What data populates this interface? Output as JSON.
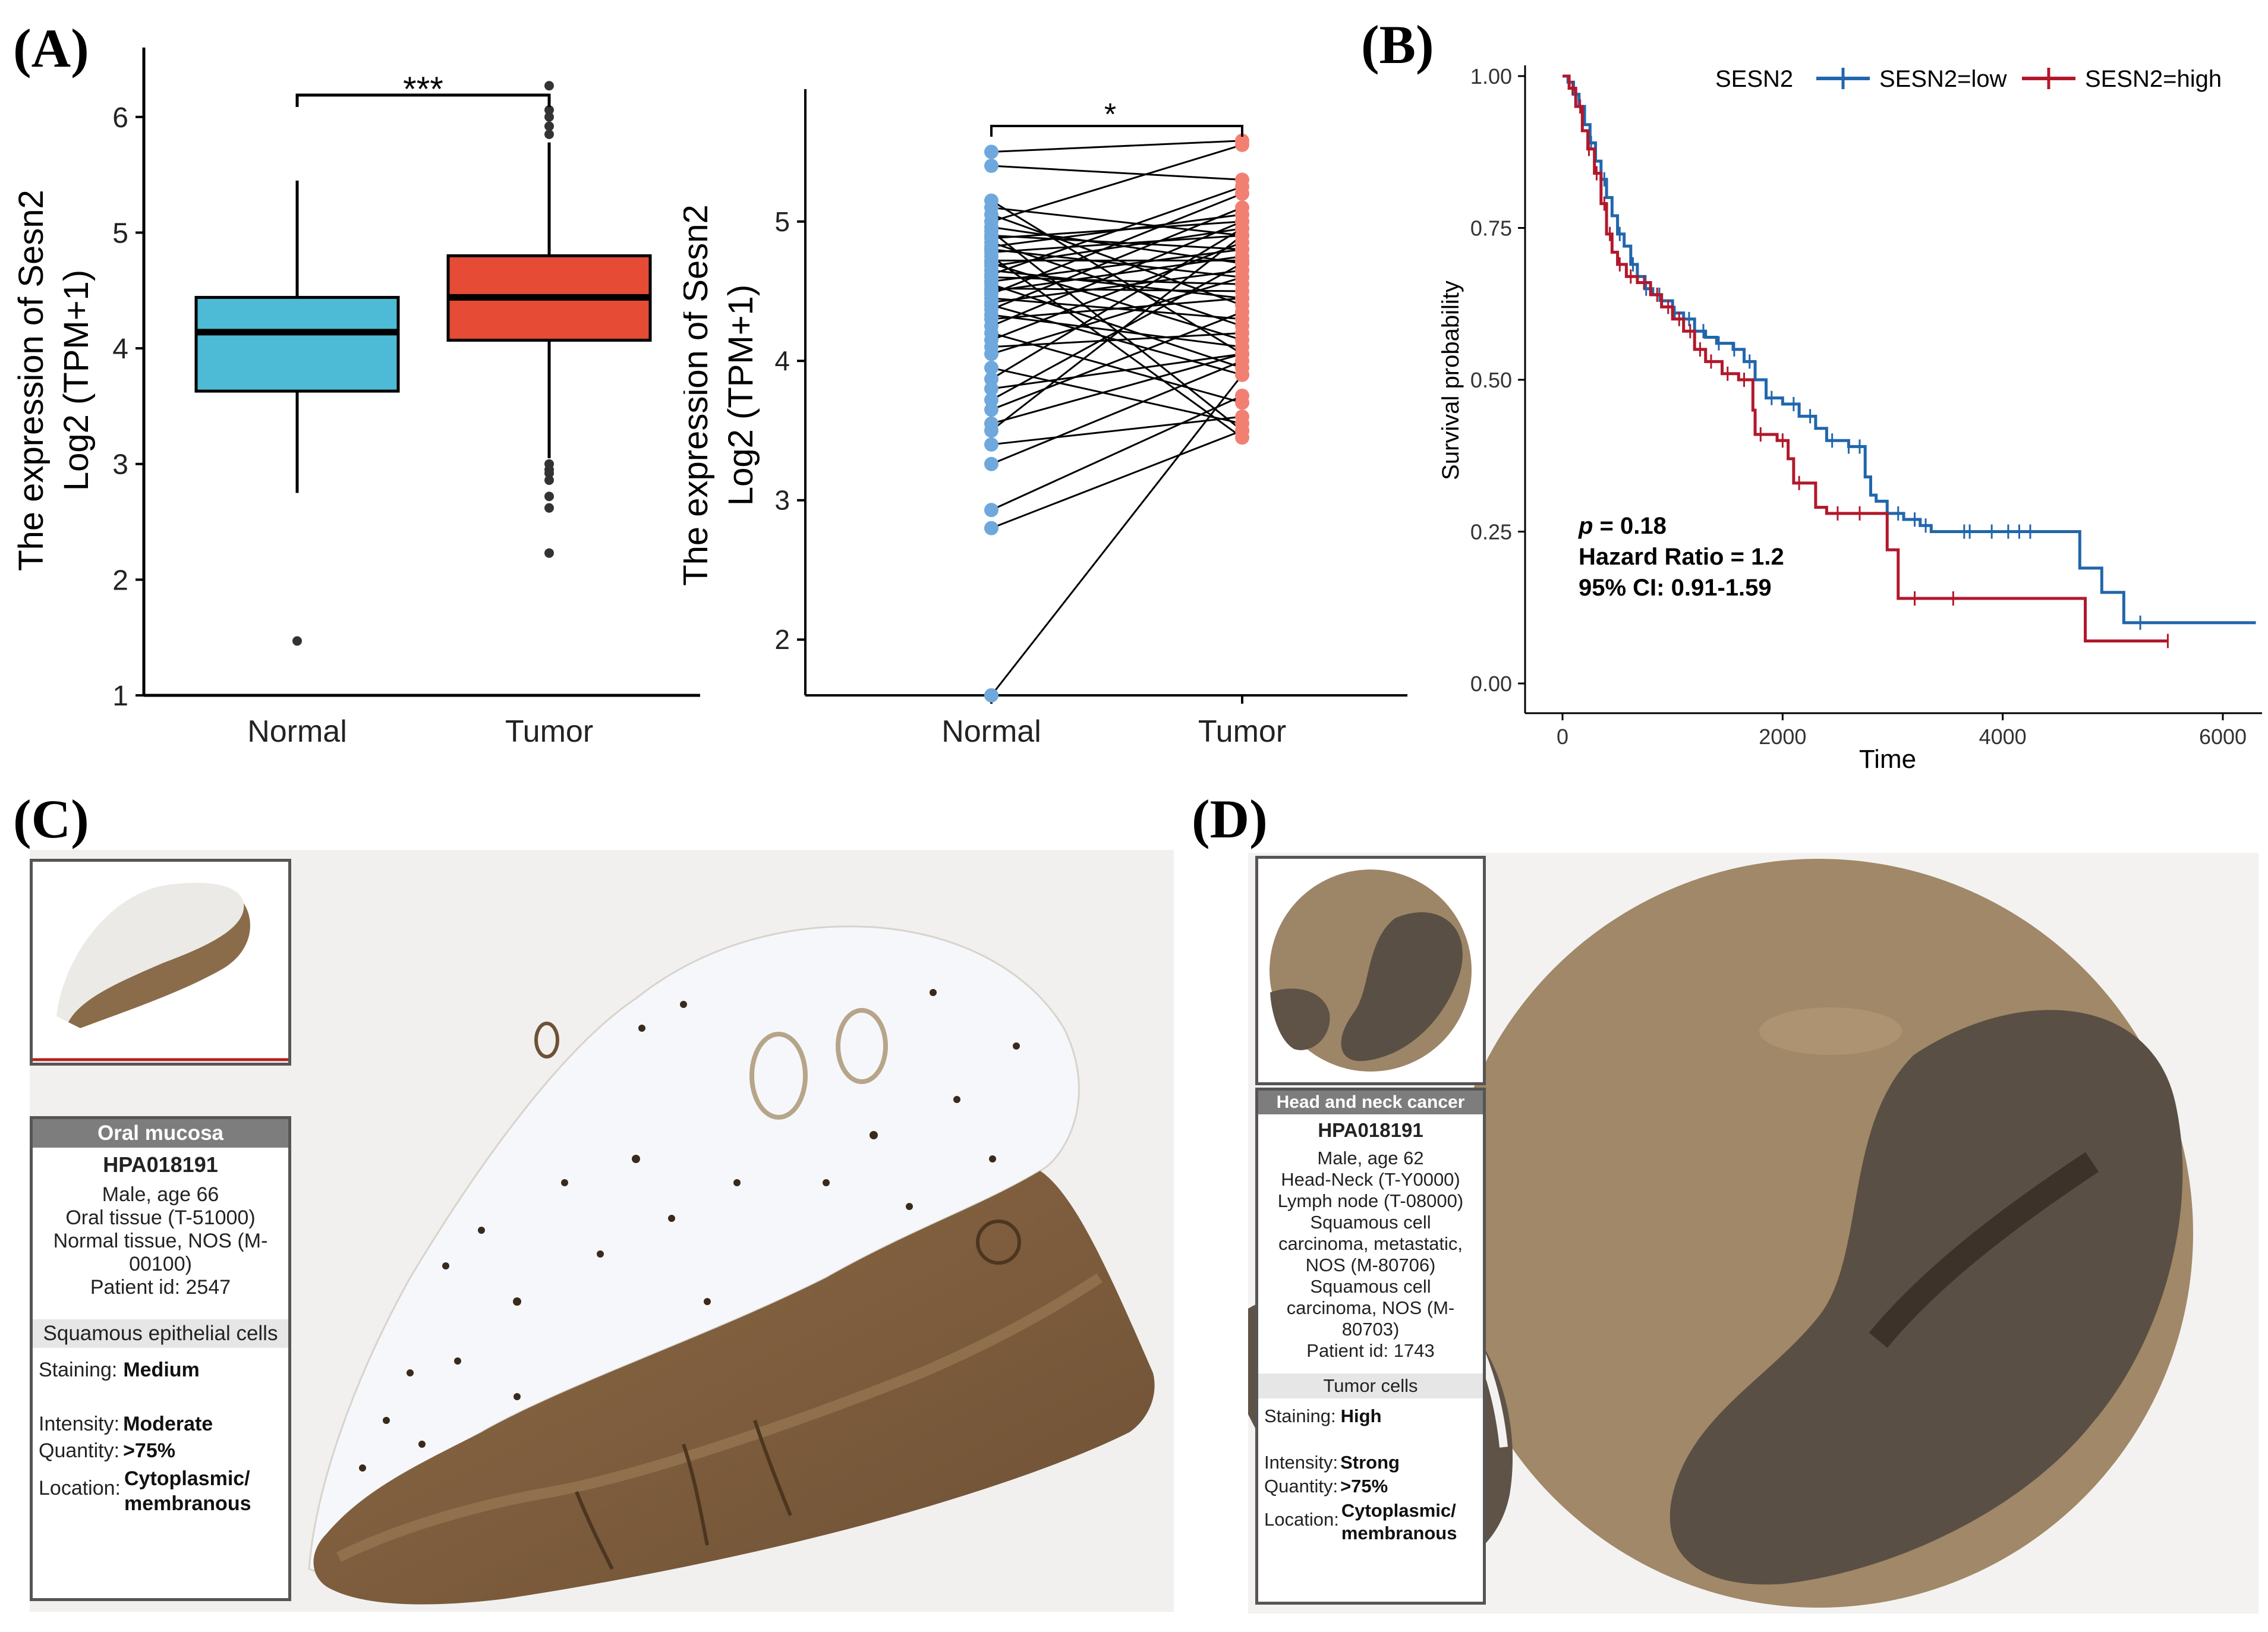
{
  "panels": {
    "a": "(A)",
    "b": "(B)",
    "c": "(C)",
    "d": "(D)"
  },
  "colors": {
    "normal": "#4dbbd5",
    "tumor": "#e64b35",
    "normal_points": "#6fa8dc",
    "tumor_points": "#f28072",
    "km_low": "#2166ac",
    "km_high": "#b2182b"
  },
  "chart_data": [
    {
      "id": "boxplot",
      "type": "box",
      "categories": [
        "Normal",
        "Tumor"
      ],
      "ylabel_line1": "The expression of Sesn2",
      "ylabel_line2": "Log2 (TPM+1)",
      "ylim": [
        1,
        6.6
      ],
      "yticks": [
        1,
        2,
        3,
        4,
        5,
        6
      ],
      "significance": "***",
      "boxes": [
        {
          "name": "Normal",
          "whisker_low": 2.75,
          "q1": 3.63,
          "median": 4.14,
          "q3": 4.44,
          "whisker_high": 5.45,
          "outliers": [
            1.47
          ]
        },
        {
          "name": "Tumor",
          "whisker_low": 3.05,
          "q1": 4.07,
          "median": 4.44,
          "q3": 4.8,
          "whisker_high": 5.78,
          "outliers": [
            2.23,
            2.62,
            2.72,
            2.86,
            2.92,
            2.95,
            3.0,
            5.85,
            5.92,
            6.0,
            6.06,
            6.27
          ]
        }
      ]
    },
    {
      "id": "paired",
      "type": "paired-line",
      "categories": [
        "Normal",
        "Tumor"
      ],
      "ylabel_line1": "The expression of Sesn2",
      "ylabel_line2": "Log2 (TPM+1)",
      "ylim": [
        1.6,
        5.95
      ],
      "yticks": [
        2,
        3,
        4,
        5
      ],
      "significance": "*",
      "pairs": [
        [
          1.6,
          3.9
        ],
        [
          2.8,
          3.5
        ],
        [
          2.93,
          3.75
        ],
        [
          3.26,
          4.0
        ],
        [
          3.4,
          3.6
        ],
        [
          3.5,
          4.9
        ],
        [
          3.55,
          4.05
        ],
        [
          3.65,
          4.35
        ],
        [
          3.72,
          4.7
        ],
        [
          3.8,
          4.05
        ],
        [
          3.87,
          4.95
        ],
        [
          3.95,
          3.55
        ],
        [
          4.05,
          4.6
        ],
        [
          4.1,
          4.2
        ],
        [
          4.15,
          4.85
        ],
        [
          4.2,
          3.7
        ],
        [
          4.25,
          5.0
        ],
        [
          4.3,
          4.45
        ],
        [
          4.33,
          4.1
        ],
        [
          4.37,
          5.1
        ],
        [
          4.4,
          3.9
        ],
        [
          4.42,
          4.65
        ],
        [
          4.45,
          4.3
        ],
        [
          4.48,
          5.2
        ],
        [
          4.5,
          4.75
        ],
        [
          4.52,
          4.5
        ],
        [
          4.55,
          3.95
        ],
        [
          4.57,
          4.8
        ],
        [
          4.6,
          4.55
        ],
        [
          4.62,
          5.25
        ],
        [
          4.65,
          4.45
        ],
        [
          4.68,
          4.95
        ],
        [
          4.7,
          4.15
        ],
        [
          4.72,
          4.72
        ],
        [
          4.75,
          3.45
        ],
        [
          4.78,
          4.9
        ],
        [
          4.8,
          4.6
        ],
        [
          4.82,
          5.05
        ],
        [
          4.85,
          4.25
        ],
        [
          4.88,
          5.0
        ],
        [
          4.9,
          4.8
        ],
        [
          4.93,
          3.5
        ],
        [
          4.96,
          4.7
        ],
        [
          5.0,
          5.55
        ],
        [
          5.05,
          4.4
        ],
        [
          5.1,
          4.9
        ],
        [
          5.15,
          4.05
        ],
        [
          5.4,
          5.3
        ],
        [
          5.5,
          5.58
        ]
      ]
    },
    {
      "id": "km",
      "type": "survival",
      "legend_title": "SESN2",
      "series_names": [
        "SESN2=low",
        "SESN2=high"
      ],
      "xlabel": "Time",
      "ylabel": "Survival probability",
      "xlim": [
        0,
        6300
      ],
      "ylim": [
        0,
        1
      ],
      "xticks": [
        0,
        2000,
        4000,
        6000
      ],
      "yticks": [
        0.0,
        0.25,
        0.5,
        0.75,
        1.0
      ],
      "ytick_labels": [
        "0.00",
        "0.25",
        "0.50",
        "0.75",
        "1.00"
      ],
      "annotation_p_label": "p",
      "annotation_p_value": " = 0.18",
      "annotation_hr": "Hazard Ratio = 1.2",
      "annotation_ci": "95% CI: 0.91-1.59",
      "series": [
        {
          "name": "SESN2=low",
          "steps": [
            [
              0,
              1.0
            ],
            [
              50,
              0.99
            ],
            [
              100,
              0.97
            ],
            [
              150,
              0.95
            ],
            [
              200,
              0.92
            ],
            [
              250,
              0.89
            ],
            [
              300,
              0.86
            ],
            [
              350,
              0.83
            ],
            [
              400,
              0.8
            ],
            [
              450,
              0.77
            ],
            [
              500,
              0.74
            ],
            [
              560,
              0.72
            ],
            [
              620,
              0.69
            ],
            [
              680,
              0.67
            ],
            [
              750,
              0.65
            ],
            [
              820,
              0.64
            ],
            [
              900,
              0.63
            ],
            [
              1000,
              0.61
            ],
            [
              1100,
              0.6
            ],
            [
              1200,
              0.58
            ],
            [
              1300,
              0.57
            ],
            [
              1400,
              0.56
            ],
            [
              1550,
              0.55
            ],
            [
              1650,
              0.53
            ],
            [
              1750,
              0.5
            ],
            [
              1850,
              0.47
            ],
            [
              2000,
              0.46
            ],
            [
              2150,
              0.44
            ],
            [
              2300,
              0.42
            ],
            [
              2400,
              0.4
            ],
            [
              2600,
              0.39
            ],
            [
              2750,
              0.34
            ],
            [
              2800,
              0.31
            ],
            [
              2850,
              0.3
            ],
            [
              2950,
              0.28
            ],
            [
              3100,
              0.27
            ],
            [
              3250,
              0.26
            ],
            [
              3350,
              0.25
            ],
            [
              4000,
              0.25
            ],
            [
              4650,
              0.25
            ],
            [
              4700,
              0.19
            ],
            [
              4900,
              0.15
            ],
            [
              5100,
              0.1
            ],
            [
              5300,
              0.1
            ],
            [
              6300,
              0.1
            ]
          ],
          "censor": [
            120,
            260,
            380,
            520,
            640,
            760,
            880,
            1020,
            1150,
            1280,
            1420,
            1560,
            1700,
            1900,
            2100,
            2250,
            2450,
            2600,
            2700,
            3050,
            3200,
            3300,
            3650,
            3700,
            3900,
            4050,
            4150,
            4250,
            5250
          ]
        },
        {
          "name": "SESN2=high",
          "steps": [
            [
              0,
              1.0
            ],
            [
              60,
              0.98
            ],
            [
              120,
              0.95
            ],
            [
              180,
              0.91
            ],
            [
              230,
              0.88
            ],
            [
              290,
              0.84
            ],
            [
              350,
              0.79
            ],
            [
              400,
              0.74
            ],
            [
              450,
              0.71
            ],
            [
              500,
              0.69
            ],
            [
              580,
              0.67
            ],
            [
              680,
              0.66
            ],
            [
              800,
              0.64
            ],
            [
              900,
              0.62
            ],
            [
              1000,
              0.6
            ],
            [
              1100,
              0.58
            ],
            [
              1200,
              0.55
            ],
            [
              1300,
              0.53
            ],
            [
              1450,
              0.51
            ],
            [
              1600,
              0.5
            ],
            [
              1700,
              0.5
            ],
            [
              1730,
              0.45
            ],
            [
              1750,
              0.41
            ],
            [
              1950,
              0.4
            ],
            [
              2050,
              0.37
            ],
            [
              2100,
              0.33
            ],
            [
              2300,
              0.29
            ],
            [
              2400,
              0.28
            ],
            [
              2900,
              0.28
            ],
            [
              2950,
              0.22
            ],
            [
              3050,
              0.14
            ],
            [
              3800,
              0.14
            ],
            [
              4750,
              0.14
            ],
            [
              4750,
              0.07
            ],
            [
              5500,
              0.07
            ]
          ],
          "censor": [
            90,
            160,
            240,
            310,
            380,
            430,
            520,
            620,
            740,
            860,
            960,
            1060,
            1160,
            1250,
            1350,
            1500,
            1650,
            1800,
            2000,
            2150,
            2500,
            2700,
            3200,
            3550,
            5500
          ]
        }
      ]
    }
  ],
  "hpa_c": {
    "tissue_header": "Oral mucosa",
    "antibody": "HPA018191",
    "patient_info": [
      "Male, age 66",
      "Oral tissue (T-51000)",
      "Normal tissue, NOS (M-",
      "00100)",
      "Patient id: 2547"
    ],
    "cell_type": "Squamous epithelial cells",
    "staining_label": "Staining:",
    "staining_value": "Medium",
    "intensity_label": "Intensity:",
    "intensity_value": "Moderate",
    "quantity_label": "Quantity:",
    "quantity_value": ">75%",
    "location_label": "Location:",
    "location_value": "Cytoplasmic/ membranous"
  },
  "hpa_d": {
    "tissue_header": "Head and neck cancer",
    "antibody": "HPA018191",
    "patient_info": [
      "Male, age 62",
      "Head-Neck (T-Y0000)",
      "Lymph node (T-08000)",
      "Squamous cell",
      "carcinoma, metastatic,",
      "NOS (M-80706)",
      "Squamous cell",
      "carcinoma, NOS (M-",
      "80703)",
      "Patient id: 1743"
    ],
    "cell_type": "Tumor cells",
    "staining_label": "Staining:",
    "staining_value": "High",
    "intensity_label": "Intensity:",
    "intensity_value": "Strong",
    "quantity_label": "Quantity:",
    "quantity_value": ">75%",
    "location_label": "Location:",
    "location_value": "Cytoplasmic/ membranous"
  }
}
